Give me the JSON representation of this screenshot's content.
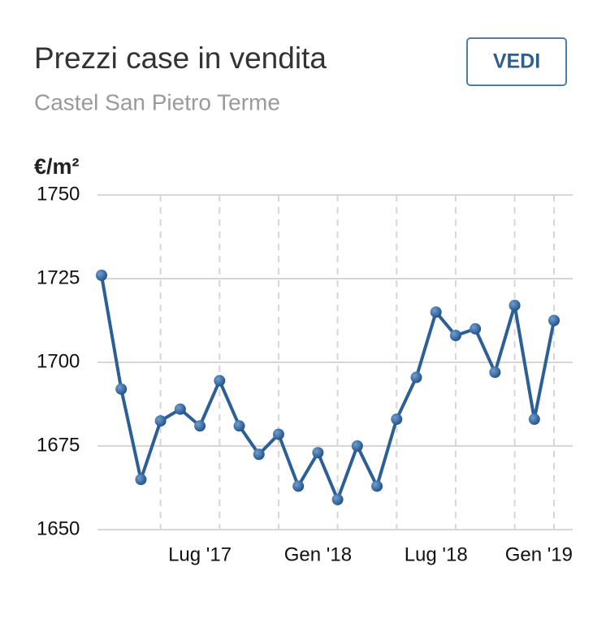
{
  "header": {
    "title": "Prezzi case in vendita",
    "subtitle": "Castel San Pietro Terme",
    "button": "VEDI"
  },
  "chart_data": {
    "type": "line",
    "ylabel": "€/m²",
    "categories": [
      null,
      null,
      null,
      null,
      null,
      "Lug '17",
      null,
      null,
      null,
      null,
      null,
      "Gen '18",
      null,
      null,
      null,
      null,
      null,
      "Lug '18",
      null,
      null,
      null,
      null,
      null,
      "Gen '19"
    ],
    "values": [
      1726,
      1692,
      1665,
      1682.5,
      1686,
      1681,
      1694.5,
      1681,
      1672.5,
      1678.5,
      1663,
      1673,
      1659,
      1675,
      1663,
      1683,
      1695.5,
      1715,
      1708,
      1710,
      1697,
      1717,
      1683,
      1712.5
    ],
    "color": "#2b5f95",
    "ylim": [
      1650,
      1750
    ],
    "yticks": [
      1650,
      1675,
      1700,
      1725,
      1750
    ],
    "grid": true
  }
}
